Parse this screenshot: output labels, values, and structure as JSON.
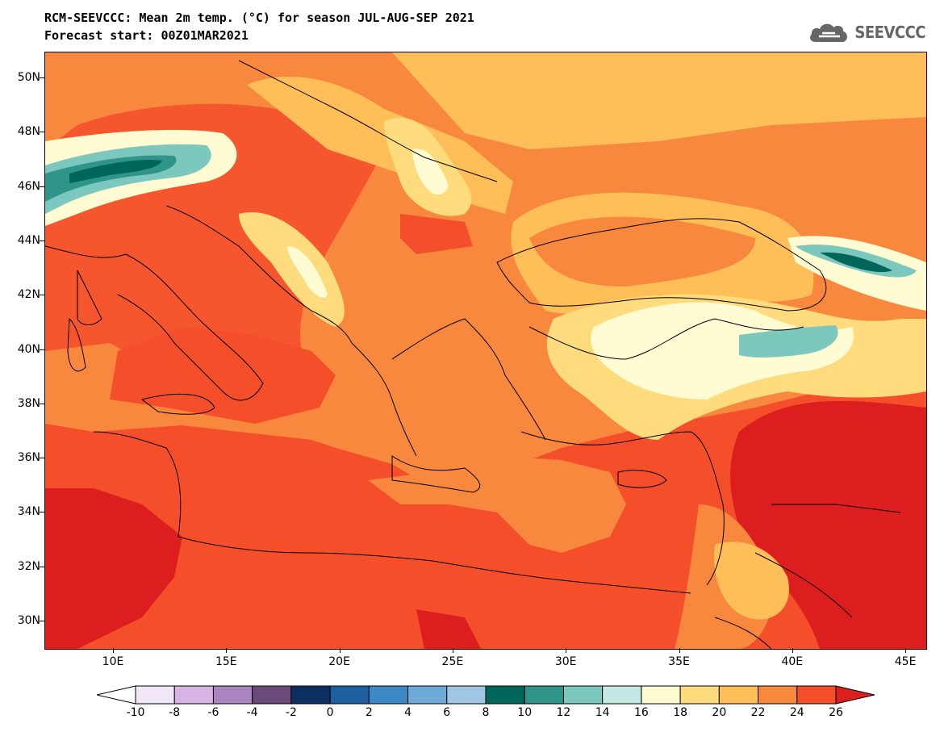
{
  "title_line1": "RCM-SEEVCCC: Mean 2m temp. (°C) for season JUL-AUG-SEP 2021",
  "title_line2": "Forecast start: 00Z01MAR2021",
  "logo_text": "SEEVCCC",
  "lat_labels": [
    "50N",
    "48N",
    "46N",
    "44N",
    "42N",
    "40N",
    "38N",
    "36N",
    "34N",
    "32N",
    "30N"
  ],
  "lon_labels": [
    "10E",
    "15E",
    "20E",
    "25E",
    "30E",
    "35E",
    "40E",
    "45E"
  ],
  "colorbar": {
    "labels": [
      "-10",
      "-8",
      "-6",
      "-4",
      "-2",
      "0",
      "2",
      "4",
      "6",
      "8",
      "10",
      "12",
      "14",
      "16",
      "18",
      "20",
      "22",
      "24",
      "26"
    ],
    "colors": [
      "#F0E6F5",
      "#D7B4E4",
      "#A984BE",
      "#6A4A78",
      "#0D2E5E",
      "#1E60A0",
      "#3C89C6",
      "#6EAAD7",
      "#9FC6E2",
      "#00665A",
      "#2F9589",
      "#7DC8BE",
      "#C3E8E4",
      "#FFFBD2",
      "#FEDC7D",
      "#FFBE57",
      "#F7883E",
      "#F44E2A",
      "#DC1E1E"
    ]
  }
}
